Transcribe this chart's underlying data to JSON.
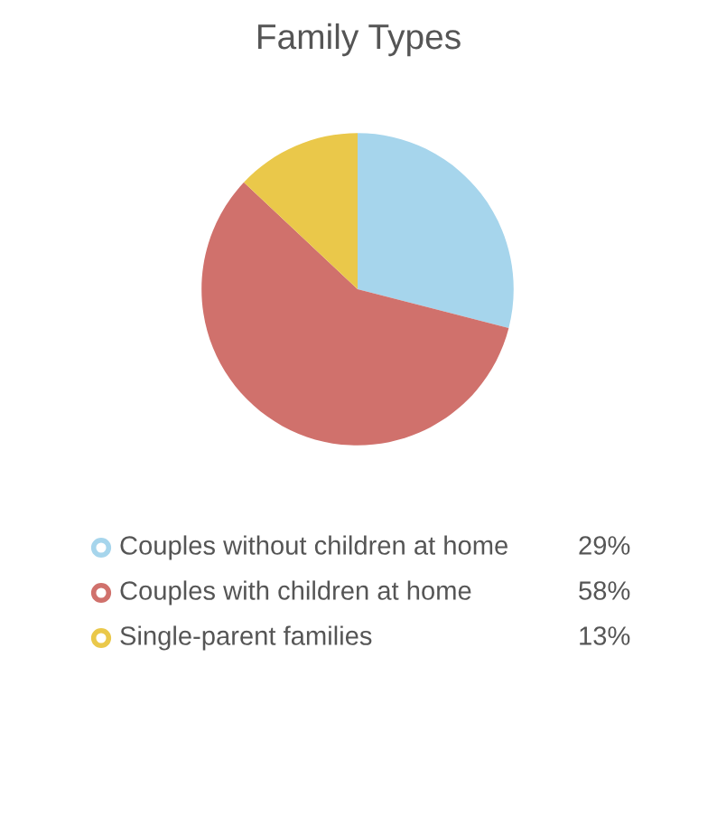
{
  "chart_data": {
    "type": "pie",
    "title": "Family Types",
    "categories": [
      "Couples without children at home",
      "Couples with children at home",
      "Single-parent families"
    ],
    "values": [
      29,
      58,
      13
    ],
    "colors": [
      "#a6d5ec",
      "#d0716c",
      "#eac84a"
    ],
    "value_labels": [
      "29%",
      "58%",
      "13%"
    ],
    "legend": "bottom"
  }
}
